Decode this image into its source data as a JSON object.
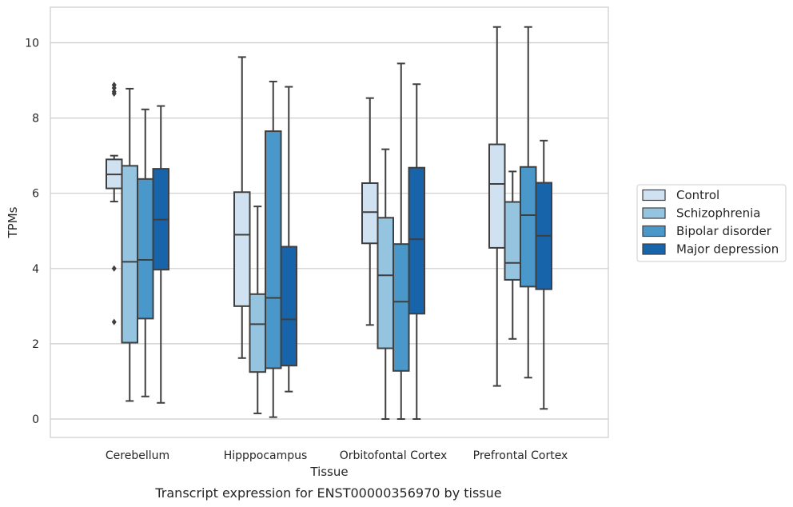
{
  "chart_data": {
    "type": "box",
    "caption": "Transcript expression for ENST00000356970 by tissue",
    "xlabel": "Tissue",
    "ylabel": "TPMs",
    "ylim": [
      -0.5,
      10.95
    ],
    "yticks": [
      0,
      2,
      4,
      6,
      8,
      10
    ],
    "grid": "horizontal",
    "legend_placement": "center-right",
    "categories": [
      "Cerebellum",
      "Hipppocampus",
      "Orbitofontal Cortex",
      "Prefrontal Cortex"
    ],
    "series": [
      {
        "name": "Control",
        "color": "#d0e1f2",
        "boxes": [
          {
            "whisker_low": 5.78,
            "q1": 6.13,
            "median": 6.5,
            "q3": 6.9,
            "whisker_high": 7.0,
            "outliers": [
              8.88,
              8.8,
              8.7,
              8.65,
              4.0,
              2.58
            ]
          },
          {
            "whisker_low": 1.62,
            "q1": 3.0,
            "median": 4.9,
            "q3": 6.03,
            "whisker_high": 9.62,
            "outliers": []
          },
          {
            "whisker_low": 2.5,
            "q1": 4.67,
            "median": 5.5,
            "q3": 6.27,
            "whisker_high": 8.53,
            "outliers": []
          },
          {
            "whisker_low": 0.88,
            "q1": 4.55,
            "median": 6.25,
            "q3": 7.3,
            "whisker_high": 10.42,
            "outliers": []
          }
        ]
      },
      {
        "name": "Schizophrenia",
        "color": "#94c4df",
        "boxes": [
          {
            "whisker_low": 0.48,
            "q1": 2.03,
            "median": 4.18,
            "q3": 6.73,
            "whisker_high": 8.78,
            "outliers": []
          },
          {
            "whisker_low": 0.15,
            "q1": 1.25,
            "median": 2.52,
            "q3": 3.32,
            "whisker_high": 5.65,
            "outliers": []
          },
          {
            "whisker_low": 0.0,
            "q1": 1.88,
            "median": 3.82,
            "q3": 5.35,
            "whisker_high": 7.17,
            "outliers": []
          },
          {
            "whisker_low": 2.13,
            "q1": 3.7,
            "median": 4.15,
            "q3": 5.77,
            "whisker_high": 6.58,
            "outliers": []
          }
        ]
      },
      {
        "name": "Bipolar disorder",
        "color": "#4a98c9",
        "boxes": [
          {
            "whisker_low": 0.6,
            "q1": 2.67,
            "median": 4.23,
            "q3": 6.38,
            "whisker_high": 8.23,
            "outliers": []
          },
          {
            "whisker_low": 0.05,
            "q1": 1.35,
            "median": 3.22,
            "q3": 7.65,
            "whisker_high": 8.97,
            "outliers": []
          },
          {
            "whisker_low": 0.0,
            "q1": 1.28,
            "median": 3.12,
            "q3": 4.65,
            "whisker_high": 9.45,
            "outliers": []
          },
          {
            "whisker_low": 1.1,
            "q1": 3.52,
            "median": 5.42,
            "q3": 6.7,
            "whisker_high": 10.42,
            "outliers": []
          }
        ]
      },
      {
        "name": "Major depression",
        "color": "#1764ab",
        "boxes": [
          {
            "whisker_low": 0.43,
            "q1": 3.97,
            "median": 5.3,
            "q3": 6.65,
            "whisker_high": 8.32,
            "outliers": []
          },
          {
            "whisker_low": 0.73,
            "q1": 1.42,
            "median": 2.65,
            "q3": 4.58,
            "whisker_high": 8.83,
            "outliers": []
          },
          {
            "whisker_low": 0.0,
            "q1": 2.8,
            "median": 4.78,
            "q3": 6.68,
            "whisker_high": 8.9,
            "outliers": []
          },
          {
            "whisker_low": 0.27,
            "q1": 3.45,
            "median": 4.87,
            "q3": 6.28,
            "whisker_high": 7.4,
            "outliers": []
          }
        ]
      }
    ]
  },
  "colors": {
    "grid": "#cccccc",
    "axes_edge": "#cccccc",
    "box_line": "#3f3f3f",
    "legend_border": "#cccccc"
  }
}
